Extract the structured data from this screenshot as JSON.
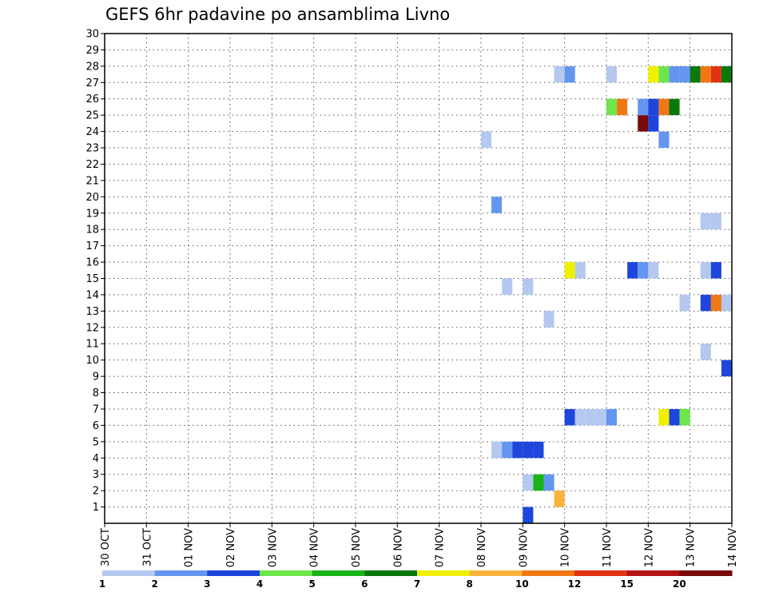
{
  "chart_data": {
    "type": "heatmap",
    "title": "GEFS 6hr padavine po ansamblima Livno",
    "xlabel": "",
    "ylabel": "",
    "x_tick_labels": [
      "30 OCT",
      "31 OCT",
      "01 NOV",
      "02 NOV",
      "03 NOV",
      "04 NOV",
      "05 NOV",
      "06 NOV",
      "07 NOV",
      "08 NOV",
      "09 NOV",
      "10 NOV",
      "11 NOV",
      "12 NOV",
      "13 NOV",
      "14 NOV"
    ],
    "x_steps_per_day": 4,
    "x_range_steps": [
      0,
      60
    ],
    "y_tick_labels": [
      "1",
      "2",
      "3",
      "4",
      "5",
      "6",
      "7",
      "8",
      "9",
      "10",
      "11",
      "12",
      "13",
      "14",
      "15",
      "16",
      "17",
      "18",
      "19",
      "20",
      "21",
      "22",
      "23",
      "24",
      "25",
      "26",
      "27",
      "28",
      "29",
      "30"
    ],
    "y_range": [
      0,
      30
    ],
    "grid": true,
    "legend": {
      "position": "bottom",
      "colors": [
        "#b4c8f0",
        "#6496f0",
        "#1e46dc",
        "#6ee64b",
        "#19b419",
        "#0a780a",
        "#f0f000",
        "#fab43c",
        "#f07814",
        "#e13214",
        "#b41414",
        "#780a0a"
      ],
      "labels": [
        "1",
        "2",
        "3",
        "4",
        "5",
        "6",
        "7",
        "8",
        "10",
        "12",
        "15",
        "20"
      ]
    },
    "cells_note": "",
    "cells": [
      [
        40,
        0,
        3
      ],
      [
        43,
        1,
        8
      ],
      [
        40,
        2,
        1
      ],
      [
        42,
        2,
        2
      ],
      [
        41,
        2,
        5
      ],
      [
        40,
        4,
        3
      ],
      [
        41,
        4,
        3
      ],
      [
        37,
        4,
        1
      ],
      [
        38,
        4,
        2
      ],
      [
        39,
        4,
        3
      ],
      [
        44,
        6,
        3
      ],
      [
        45,
        6,
        1
      ],
      [
        46,
        6,
        1
      ],
      [
        47,
        6,
        1
      ],
      [
        48,
        6,
        2
      ],
      [
        53,
        6,
        7
      ],
      [
        54,
        6,
        3
      ],
      [
        55,
        6,
        4
      ],
      [
        59,
        9,
        3
      ],
      [
        57,
        10,
        1
      ],
      [
        42,
        12,
        1
      ],
      [
        55,
        13,
        1
      ],
      [
        57,
        13,
        3
      ],
      [
        58,
        13,
        9
      ],
      [
        59,
        13,
        1
      ],
      [
        60,
        13,
        12
      ],
      [
        38,
        14,
        1
      ],
      [
        40,
        14,
        1
      ],
      [
        44,
        15,
        7
      ],
      [
        45,
        15,
        1
      ],
      [
        50,
        15,
        3
      ],
      [
        51,
        15,
        2
      ],
      [
        52,
        15,
        1
      ],
      [
        57,
        15,
        1
      ],
      [
        58,
        15,
        3
      ],
      [
        60,
        17,
        1
      ],
      [
        57,
        18,
        1
      ],
      [
        58,
        18,
        1
      ],
      [
        37,
        19,
        2
      ],
      [
        36,
        23,
        1
      ],
      [
        53,
        23,
        2
      ],
      [
        60,
        23,
        1
      ],
      [
        51,
        24,
        12
      ],
      [
        52,
        24,
        3
      ],
      [
        48,
        25,
        4
      ],
      [
        49,
        25,
        9
      ],
      [
        51,
        25,
        2
      ],
      [
        52,
        25,
        3
      ],
      [
        53,
        25,
        9
      ],
      [
        54,
        25,
        6
      ],
      [
        43,
        27,
        1
      ],
      [
        44,
        27,
        2
      ],
      [
        48,
        27,
        1
      ],
      [
        52,
        27,
        7
      ],
      [
        53,
        27,
        4
      ],
      [
        54,
        27,
        2
      ],
      [
        55,
        27,
        2
      ],
      [
        56,
        27,
        6
      ],
      [
        57,
        27,
        9
      ],
      [
        58,
        27,
        10
      ],
      [
        59,
        27,
        6
      ]
    ]
  }
}
